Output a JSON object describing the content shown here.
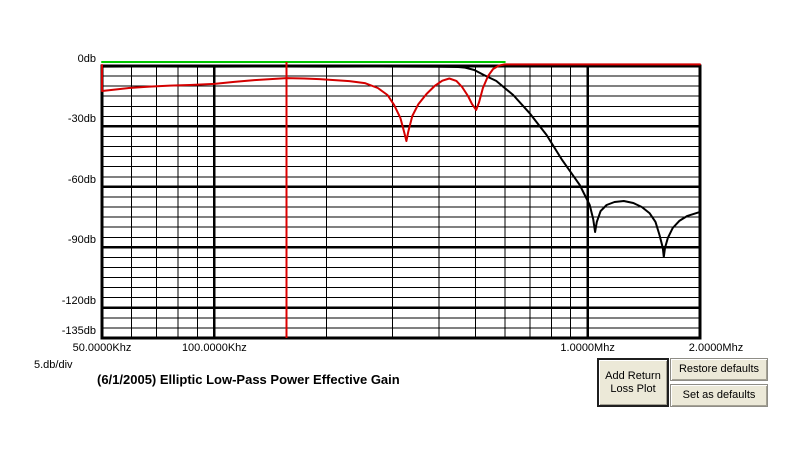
{
  "chart": {
    "title": "(6/1/2005) Elliptic Low-Pass Power Effective Gain",
    "db_per_div_label": "5.db/div",
    "chart_data": {
      "type": "line",
      "x_axis": {
        "scale": "log",
        "unit": "Hz",
        "min": 50000,
        "max": 2000000,
        "ticks": [
          {
            "hz": 50000,
            "label": "50.0000Khz"
          },
          {
            "hz": 100000,
            "label": "100.0000Khz"
          },
          {
            "hz": 1000000,
            "label": "1.0000Mhz"
          },
          {
            "hz": 2000000,
            "label": "2.0000Mhz"
          }
        ],
        "minor_gridlines_hz": [
          60000,
          70000,
          80000,
          90000,
          200000,
          300000,
          400000,
          500000,
          600000,
          700000,
          800000,
          900000
        ],
        "major_gridlines_hz": [
          100000,
          1000000
        ]
      },
      "y_axis": {
        "unit": "db",
        "max": 0,
        "min": -135,
        "db_per_div": 5,
        "ticks": [
          {
            "db": 0,
            "label": "0db"
          },
          {
            "db": -30,
            "label": "-30db"
          },
          {
            "db": -60,
            "label": "-60db"
          },
          {
            "db": -90,
            "label": "-90db"
          },
          {
            "db": -120,
            "label": "-120db"
          },
          {
            "db": -135,
            "label": "-135db"
          }
        ],
        "major_gridlines_db": [
          -30,
          -60,
          -90,
          -120
        ]
      },
      "marker_line": {
        "hz": 156000,
        "color": "#dd0000"
      },
      "series": [
        {
          "name": "zero-db-reference",
          "color": "#00c800",
          "points": [
            [
              50000,
              0
            ],
            [
              600000,
              0
            ]
          ]
        },
        {
          "name": "effective-gain",
          "color": "#000000",
          "points": [
            [
              50000,
              -0.3
            ],
            [
              70000,
              -0.25
            ],
            [
              100000,
              -0.3
            ],
            [
              150000,
              -0.25
            ],
            [
              200000,
              -0.3
            ],
            [
              260000,
              -0.25
            ],
            [
              330000,
              -0.3
            ],
            [
              400000,
              -0.35
            ],
            [
              450000,
              -0.5
            ],
            [
              470000,
              -0.8
            ],
            [
              497000,
              -2.0
            ],
            [
              528000,
              -4.5
            ],
            [
              569000,
              -7.4
            ],
            [
              632000,
              -14.4
            ],
            [
              698000,
              -23.3
            ],
            [
              776000,
              -34.2
            ],
            [
              855000,
              -46.7
            ],
            [
              953000,
              -59.1
            ],
            [
              1013000,
              -69.0
            ],
            [
              1035000,
              -76.0
            ],
            [
              1047000,
              -82.4
            ],
            [
              1052000,
              -80.0
            ],
            [
              1058000,
              -77.4
            ],
            [
              1083000,
              -72.0
            ],
            [
              1124000,
              -69.0
            ],
            [
              1180000,
              -67.5
            ],
            [
              1250000,
              -67.0
            ],
            [
              1325000,
              -68.0
            ],
            [
              1397000,
              -70.0
            ],
            [
              1465000,
              -73.0
            ],
            [
              1520000,
              -77.4
            ],
            [
              1558000,
              -83.9
            ],
            [
              1590000,
              -90.3
            ],
            [
              1600000,
              -94.8
            ],
            [
              1612000,
              -90.3
            ],
            [
              1640000,
              -85.4
            ],
            [
              1690000,
              -80.4
            ],
            [
              1760000,
              -76.9
            ],
            [
              1850000,
              -74.4
            ],
            [
              2000000,
              -72.4
            ]
          ]
        },
        {
          "name": "return-loss",
          "color": "#d40000",
          "points": [
            [
              50000,
              -0.5
            ],
            [
              50000,
              -13.4
            ],
            [
              54000,
              -12.7
            ],
            [
              59000,
              -11.9
            ],
            [
              67000,
              -11.2
            ],
            [
              76000,
              -10.7
            ],
            [
              86000,
              -10.4
            ],
            [
              100000,
              -9.9
            ],
            [
              113000,
              -8.9
            ],
            [
              128000,
              -8.0
            ],
            [
              145000,
              -7.4
            ],
            [
              156000,
              -7.0
            ],
            [
              174000,
              -7.2
            ],
            [
              191000,
              -7.5
            ],
            [
              210000,
              -8.0
            ],
            [
              230000,
              -8.5
            ],
            [
              253000,
              -9.5
            ],
            [
              274000,
              -11.9
            ],
            [
              291000,
              -15.4
            ],
            [
              303000,
              -20.3
            ],
            [
              315000,
              -26.8
            ],
            [
              322000,
              -33.3
            ],
            [
              327000,
              -38.2
            ],
            [
              331000,
              -33.3
            ],
            [
              339000,
              -25.8
            ],
            [
              352000,
              -19.9
            ],
            [
              370000,
              -14.9
            ],
            [
              389000,
              -10.9
            ],
            [
              408000,
              -8.3
            ],
            [
              426000,
              -7.2
            ],
            [
              445000,
              -8.4
            ],
            [
              461000,
              -11.4
            ],
            [
              478000,
              -15.9
            ],
            [
              490000,
              -19.9
            ],
            [
              503000,
              -22.8
            ],
            [
              512000,
              -18.9
            ],
            [
              524000,
              -11.9
            ],
            [
              541000,
              -6.0
            ],
            [
              558000,
              -2.5
            ],
            [
              578000,
              -0.8
            ],
            [
              600000,
              -0.2
            ],
            [
              2000000,
              -0.2
            ]
          ]
        }
      ]
    }
  },
  "buttons": {
    "add_return_loss": {
      "line1": "Add Return",
      "line2": "Loss Plot"
    },
    "restore_defaults": {
      "label": "Restore defaults"
    },
    "set_as_defaults": {
      "label": "Set as defaults"
    }
  },
  "colors": {
    "grid": "#000000",
    "reference_line": "#00c800",
    "gain_curve": "#000000",
    "return_loss_curve": "#d40000",
    "marker_line": "#dd0000",
    "button_face": "#ece9d8",
    "background": "#ffffff"
  }
}
